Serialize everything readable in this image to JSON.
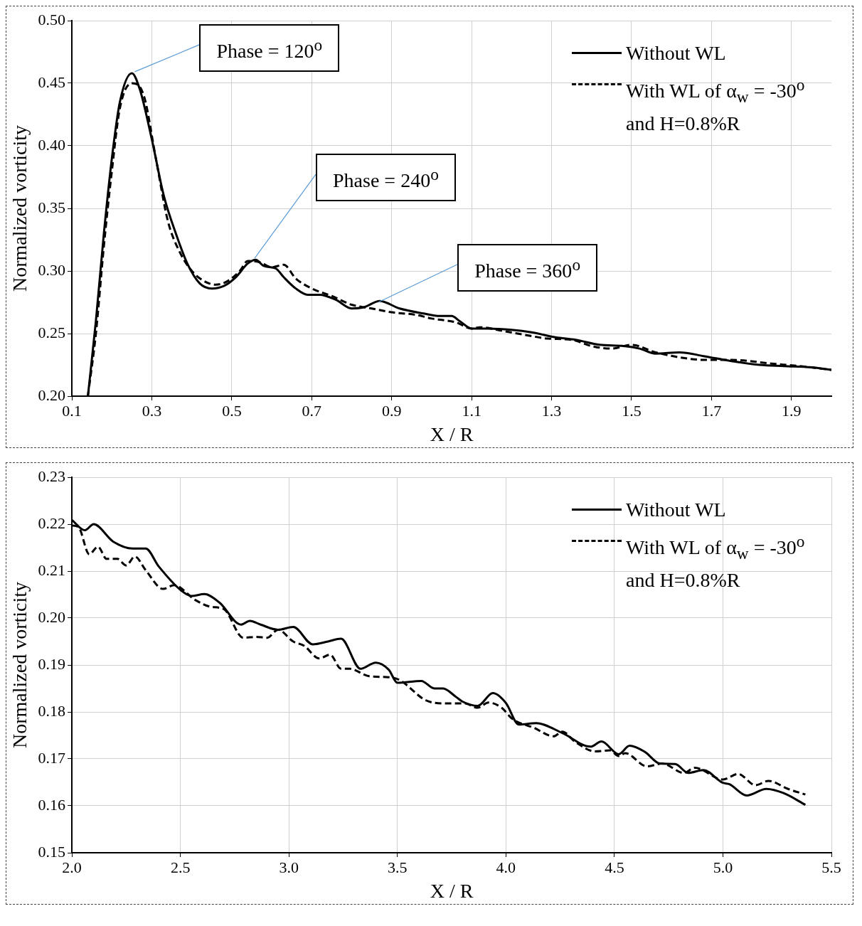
{
  "chart_data": [
    {
      "type": "line",
      "xlabel": "X / R",
      "ylabel": "Normalized vorticity",
      "xlim": [
        0.1,
        2.0
      ],
      "ylim": [
        0.2,
        0.5
      ],
      "xticks": [
        0.1,
        0.3,
        0.5,
        0.7,
        0.9,
        1.1,
        1.3,
        1.5,
        1.7,
        1.9
      ],
      "yticks": [
        {
          "value": 0.2,
          "label": "0.20"
        },
        0.25,
        {
          "value": 0.3,
          "label": "0.30"
        },
        0.35,
        {
          "value": 0.4,
          "label": "0.40"
        },
        0.45,
        {
          "value": 0.5,
          "label": "0.50"
        }
      ],
      "grid": true,
      "legend": "top right",
      "marker": "none",
      "annotations": [
        {
          "text": "Phase = 120$^{o}$",
          "x": 0.25,
          "y": 0.458
        },
        {
          "text": "Phase = 240$^{o}$",
          "x": 0.55,
          "y": 0.309
        },
        {
          "text": "Phase = 360$^{o}$",
          "x": 0.86,
          "y": 0.274
        }
      ],
      "series": [
        {
          "name": "Without WL",
          "color": "#000000",
          "line_style": "solid",
          "x": [
            0.14,
            0.16,
            0.18,
            0.2,
            0.22,
            0.25,
            0.27,
            0.3,
            0.33,
            0.36,
            0.39,
            0.42,
            0.45,
            0.48,
            0.51,
            0.54,
            0.56,
            0.58,
            0.61,
            0.63,
            0.66,
            0.69,
            0.72,
            0.76,
            0.8,
            0.83,
            0.87,
            0.92,
            0.98,
            1.02,
            1.05,
            1.07,
            1.1,
            1.14,
            1.2,
            1.25,
            1.31,
            1.36,
            1.42,
            1.48,
            1.52,
            1.56,
            1.62,
            1.68,
            1.75,
            1.82,
            1.88,
            1.95,
            2.0
          ],
          "values": [
            0.2,
            0.26,
            0.33,
            0.39,
            0.435,
            0.458,
            0.445,
            0.405,
            0.36,
            0.33,
            0.305,
            0.29,
            0.286,
            0.288,
            0.295,
            0.306,
            0.309,
            0.304,
            0.302,
            0.295,
            0.286,
            0.281,
            0.281,
            0.277,
            0.27,
            0.271,
            0.276,
            0.27,
            0.266,
            0.264,
            0.264,
            0.26,
            0.254,
            0.254,
            0.253,
            0.251,
            0.247,
            0.245,
            0.241,
            0.24,
            0.238,
            0.234,
            0.235,
            0.232,
            0.228,
            0.225,
            0.224,
            0.223,
            0.221
          ]
        },
        {
          "name": "With WL of α$_{w}$ = -30$^{o}$ and H=0.8%R",
          "color": "#000000",
          "line_style": "dashed",
          "x": [
            0.14,
            0.16,
            0.18,
            0.2,
            0.22,
            0.25,
            0.28,
            0.31,
            0.34,
            0.37,
            0.4,
            0.43,
            0.46,
            0.49,
            0.52,
            0.54,
            0.57,
            0.6,
            0.63,
            0.66,
            0.7,
            0.75,
            0.8,
            0.85,
            0.9,
            0.96,
            1.0,
            1.06,
            1.1,
            1.12,
            1.18,
            1.25,
            1.29,
            1.35,
            1.4,
            1.45,
            1.5,
            1.56,
            1.62,
            1.68,
            1.75,
            1.85,
            1.92,
            2.0
          ],
          "values": [
            0.2,
            0.25,
            0.32,
            0.38,
            0.43,
            0.45,
            0.44,
            0.39,
            0.34,
            0.315,
            0.3,
            0.292,
            0.289,
            0.292,
            0.3,
            0.308,
            0.307,
            0.303,
            0.305,
            0.294,
            0.286,
            0.28,
            0.273,
            0.27,
            0.267,
            0.265,
            0.262,
            0.259,
            0.254,
            0.255,
            0.252,
            0.248,
            0.246,
            0.245,
            0.24,
            0.238,
            0.241,
            0.235,
            0.231,
            0.229,
            0.229,
            0.226,
            0.224,
            0.221
          ]
        }
      ]
    },
    {
      "type": "line",
      "xlabel": "X / R",
      "ylabel": "Normalized vorticity",
      "xlim": [
        2.0,
        5.5
      ],
      "ylim": [
        0.15,
        0.23
      ],
      "xticks": [
        {
          "value": 2,
          "label": "2.0"
        },
        2.5,
        {
          "value": 3,
          "label": "3.0"
        },
        3.5,
        {
          "value": 4,
          "label": "4.0"
        },
        4.5,
        {
          "value": 5,
          "label": "5.0"
        },
        5.5
      ],
      "yticks": [
        0.15,
        0.16,
        0.17,
        0.18,
        0.19,
        {
          "value": 0.2,
          "label": "0.20"
        },
        0.21,
        0.22,
        0.23
      ],
      "grid": true,
      "legend": "top right",
      "marker": "none",
      "series": [
        {
          "name": "Without WL",
          "color": "#000000",
          "line_style": "solid",
          "x": [
            2.0,
            2.06,
            2.1,
            2.19,
            2.28,
            2.34,
            2.4,
            2.5,
            2.55,
            2.61,
            2.68,
            2.78,
            2.82,
            2.87,
            2.95,
            3.02,
            3.11,
            3.18,
            3.24,
            3.33,
            3.4,
            3.46,
            3.5,
            3.61,
            3.67,
            3.71,
            3.77,
            3.8,
            3.87,
            3.94,
            4.0,
            4.06,
            4.14,
            4.26,
            4.39,
            4.44,
            4.52,
            4.57,
            4.64,
            4.71,
            4.78,
            4.84,
            4.91,
            5.0,
            5.03,
            5.11,
            5.2,
            5.28,
            5.38
          ],
          "values": [
            0.2209,
            0.2187,
            0.22,
            0.2163,
            0.2148,
            0.2148,
            0.211,
            0.206,
            0.2047,
            0.2051,
            0.2033,
            0.1986,
            0.1994,
            0.1986,
            0.1975,
            0.1981,
            0.1944,
            0.195,
            0.1956,
            0.1892,
            0.1905,
            0.189,
            0.1862,
            0.1866,
            0.185,
            0.185,
            0.1832,
            0.1822,
            0.1813,
            0.184,
            0.1819,
            0.1773,
            0.1776,
            0.1755,
            0.1726,
            0.1737,
            0.171,
            0.1728,
            0.1715,
            0.169,
            0.1689,
            0.167,
            0.1676,
            0.1649,
            0.1646,
            0.1622,
            0.1636,
            0.1627,
            0.1602
          ]
        },
        {
          "name": "With WL of α$_{w}$ = -30$^{o}$ and H=0.8%R",
          "color": "#000000",
          "line_style": "dashed",
          "x": [
            2.0,
            2.03,
            2.08,
            2.12,
            2.16,
            2.21,
            2.25,
            2.29,
            2.34,
            2.42,
            2.47,
            2.57,
            2.64,
            2.7,
            2.79,
            2.85,
            2.9,
            2.95,
            3.02,
            3.07,
            3.14,
            3.19,
            3.24,
            3.28,
            3.37,
            3.46,
            3.51,
            3.63,
            3.72,
            3.81,
            3.87,
            3.92,
            3.98,
            4.03,
            4.13,
            4.22,
            4.26,
            4.32,
            4.41,
            4.48,
            4.52,
            4.55,
            4.65,
            4.72,
            4.82,
            4.87,
            5.0,
            5.07,
            5.15,
            5.21,
            5.3,
            5.38
          ],
          "values": [
            0.2197,
            0.2194,
            0.2136,
            0.2152,
            0.2126,
            0.2126,
            0.2112,
            0.2131,
            0.2102,
            0.2062,
            0.207,
            0.2038,
            0.2024,
            0.2019,
            0.1958,
            0.196,
            0.1958,
            0.1975,
            0.195,
            0.1941,
            0.1914,
            0.1922,
            0.1892,
            0.1892,
            0.1876,
            0.1874,
            0.1868,
            0.1825,
            0.1818,
            0.1818,
            0.1809,
            0.182,
            0.1809,
            0.1785,
            0.1766,
            0.1748,
            0.1758,
            0.1736,
            0.1716,
            0.1718,
            0.1706,
            0.1712,
            0.1684,
            0.169,
            0.167,
            0.1681,
            0.1656,
            0.1668,
            0.1644,
            0.1653,
            0.1636,
            0.1624
          ]
        }
      ]
    }
  ]
}
